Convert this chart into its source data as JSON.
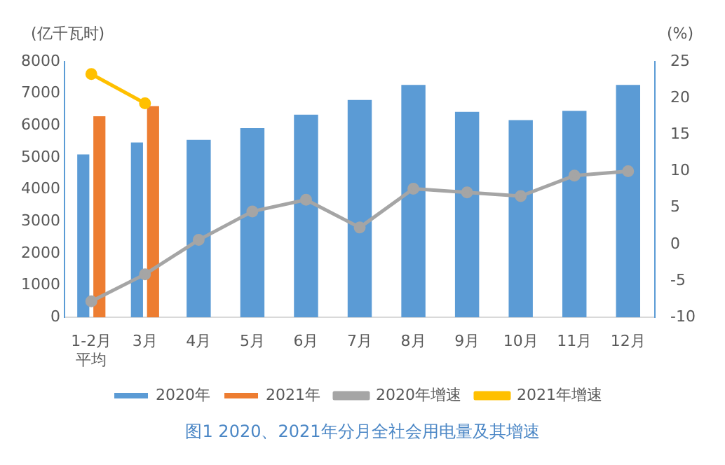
{
  "chart_data": {
    "type": "bar",
    "title": "图1  2020、2021年分月全社会用电量及其增速",
    "ylabel": "(亿千瓦时)",
    "y2label": "(%)",
    "categories": [
      "1-2月平均",
      "3月",
      "4月",
      "5月",
      "6月",
      "7月",
      "8月",
      "9月",
      "10月",
      "11月",
      "12月"
    ],
    "series": [
      {
        "name": "2020年",
        "color": "#5b9bd5",
        "values": [
          5100,
          5470,
          5550,
          5920,
          6340,
          6800,
          7270,
          6430,
          6170,
          6460,
          7270
        ]
      },
      {
        "name": "2021年",
        "color": "#ed7d31",
        "values": [
          6290,
          6610,
          null,
          null,
          null,
          null,
          null,
          null,
          null,
          null,
          null
        ]
      },
      {
        "name": "2020年增速",
        "type": "line",
        "axis": "y2",
        "color": "#a5a5a5",
        "values": [
          -7.8,
          -4.1,
          0.6,
          4.5,
          6.1,
          2.3,
          7.6,
          7.1,
          6.6,
          9.4,
          10.0
        ]
      },
      {
        "name": "2021年增速",
        "type": "line",
        "axis": "y2",
        "color": "#ffc000",
        "values": [
          23.3,
          19.3,
          null,
          null,
          null,
          null,
          null,
          null,
          null,
          null,
          null
        ]
      }
    ],
    "ylim": [
      0,
      8000
    ],
    "yticks": [
      0,
      1000,
      2000,
      3000,
      4000,
      5000,
      6000,
      7000,
      8000
    ],
    "y2lim": [
      -10,
      25
    ],
    "y2ticks": [
      -10,
      -5,
      0,
      5,
      10,
      15,
      20,
      25
    ],
    "grid": false,
    "legend": "bottom",
    "marker": "circle",
    "line_style": "solid"
  }
}
